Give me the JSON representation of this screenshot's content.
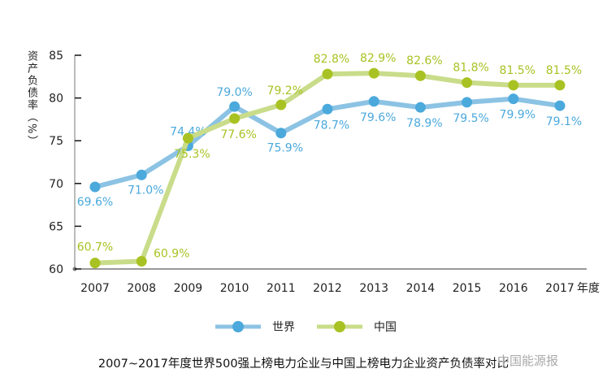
{
  "chart_data": {
    "type": "line",
    "title": "2007~2017年度世界500强上榜电力企业与中国上榜电力企业资产负债率对比",
    "xlabel": "年度",
    "ylabel": "资产负债率（%）",
    "categories": [
      "2007",
      "2008",
      "2009",
      "2010",
      "2011",
      "2012",
      "2013",
      "2014",
      "2015",
      "2016",
      "2017"
    ],
    "ylim": [
      60,
      85
    ],
    "yticks": [
      60,
      65,
      70,
      75,
      80,
      85
    ],
    "grid": false,
    "legend_position": "bottom",
    "series": [
      {
        "name": "世界",
        "color": "#4ba9dc",
        "line_color": "#8cc3e4",
        "values": [
          69.6,
          71.0,
          74.4,
          79.0,
          75.9,
          78.7,
          79.6,
          78.9,
          79.5,
          79.9,
          79.1
        ],
        "labels": [
          "69.6%",
          "71.0%",
          "74.4%",
          "79.0%",
          "75.9%",
          "78.7%",
          "79.6%",
          "78.9%",
          "79.5%",
          "79.9%",
          "79.1%"
        ]
      },
      {
        "name": "中国",
        "color": "#a9c223",
        "line_color": "#c9dc8a",
        "values": [
          60.7,
          60.9,
          75.3,
          77.6,
          79.2,
          82.8,
          82.9,
          82.6,
          81.8,
          81.5,
          81.5
        ],
        "labels": [
          "60.7%",
          "60.9%",
          "75.3%",
          "77.6%",
          "79.2%",
          "82.8%",
          "82.9%",
          "82.6%",
          "81.8%",
          "81.5%",
          "81.5%"
        ]
      }
    ]
  },
  "watermark": "中国能源报"
}
